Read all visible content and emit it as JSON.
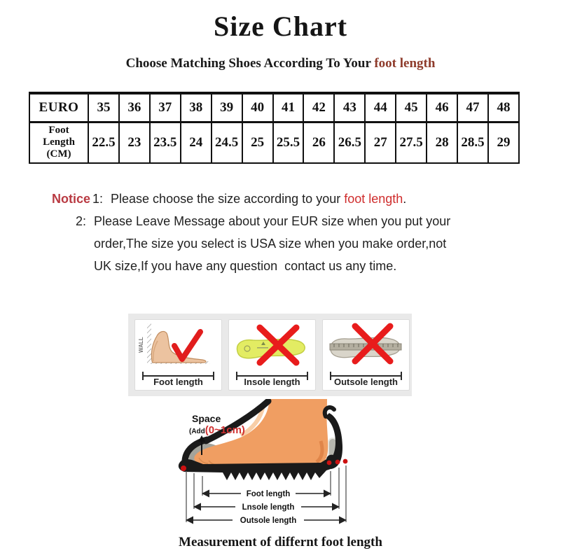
{
  "title": "Size Chart",
  "subtitle": {
    "prefix": "Choose Matching Shoes According To Your ",
    "highlight": "foot length"
  },
  "size_table": {
    "rows": [
      {
        "header": "EURO",
        "values": [
          "35",
          "36",
          "37",
          "38",
          "39",
          "40",
          "41",
          "42",
          "43",
          "44",
          "45",
          "46",
          "47",
          "48"
        ]
      },
      {
        "header": "Foot\nLength\n(CM)",
        "values": [
          "22.5",
          "23",
          "23.5",
          "24",
          "24.5",
          "25",
          "25.5",
          "26",
          "26.5",
          "27",
          "27.5",
          "28",
          "28.5",
          "29"
        ]
      }
    ]
  },
  "notice": {
    "label": "Notice",
    "item1": {
      "num": "1:",
      "text": "Please choose the size according to your ",
      "highlight": "foot length",
      "suffix": "."
    },
    "item2": {
      "num": "2:",
      "lines": [
        "Please Leave Message about your EUR size when you put your",
        "order,The size you select is USA size when you make order,not",
        "UK size,If you have any question  contact us any time."
      ]
    }
  },
  "cards": [
    {
      "label": "Foot length",
      "wall": "WALL",
      "mark": "check"
    },
    {
      "label": "Insole length",
      "mark": "cross"
    },
    {
      "label": "Outsole length",
      "mark": "cross"
    }
  ],
  "diagram": {
    "space_title": "Space",
    "space_prefix": "(Add",
    "space_value": "(0~1cm)",
    "dims": [
      "Foot length",
      "Lnsole length",
      "Outsole length"
    ]
  },
  "caption": "Measurement of differnt foot length",
  "colors": {
    "accent_red": "#e11d1d",
    "notice_red": "#b93a42",
    "highlight_red": "#cf2c2c",
    "subtitle_red": "#8e3b2b",
    "table_border": "#111111",
    "strip_bg": "#e9e9e9",
    "skin": "#f09e62",
    "insole_yellow": "#e3ec63",
    "outsole_gray": "#c9c5ba",
    "shoe_black": "#1a1a1a"
  }
}
